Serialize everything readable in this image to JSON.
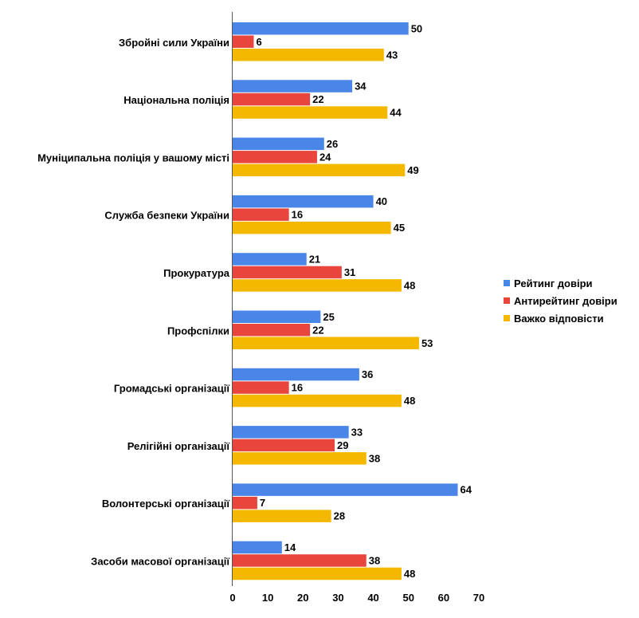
{
  "chart_data": {
    "type": "bar",
    "orientation": "horizontal",
    "title": "",
    "xlabel": "",
    "ylabel": "",
    "xlim": [
      0,
      70
    ],
    "x_ticks": [
      0,
      10,
      20,
      30,
      40,
      50,
      60,
      70
    ],
    "grid": false,
    "legend_position": "right",
    "categories": [
      "Збройні сили України",
      "Національна поліція",
      "Муніципальна поліція у вашому місті",
      "Служба безпеки України",
      "Прокуратура",
      "Профспілки",
      "Громадські організації",
      "Релігійні організації",
      "Волонтерські організації",
      "Засоби масової організації"
    ],
    "series": [
      {
        "name": "Рейтинг довіри",
        "color": "#4a86e8",
        "values": [
          50,
          34,
          26,
          40,
          21,
          25,
          36,
          33,
          64,
          14
        ]
      },
      {
        "name": "Антирейтинг довіри",
        "color": "#e8453c",
        "values": [
          6,
          22,
          24,
          16,
          31,
          22,
          16,
          29,
          7,
          38
        ]
      },
      {
        "name": "Важко відповісти",
        "color": "#f5b800",
        "values": [
          43,
          44,
          49,
          45,
          48,
          53,
          48,
          38,
          28,
          48
        ]
      }
    ]
  }
}
